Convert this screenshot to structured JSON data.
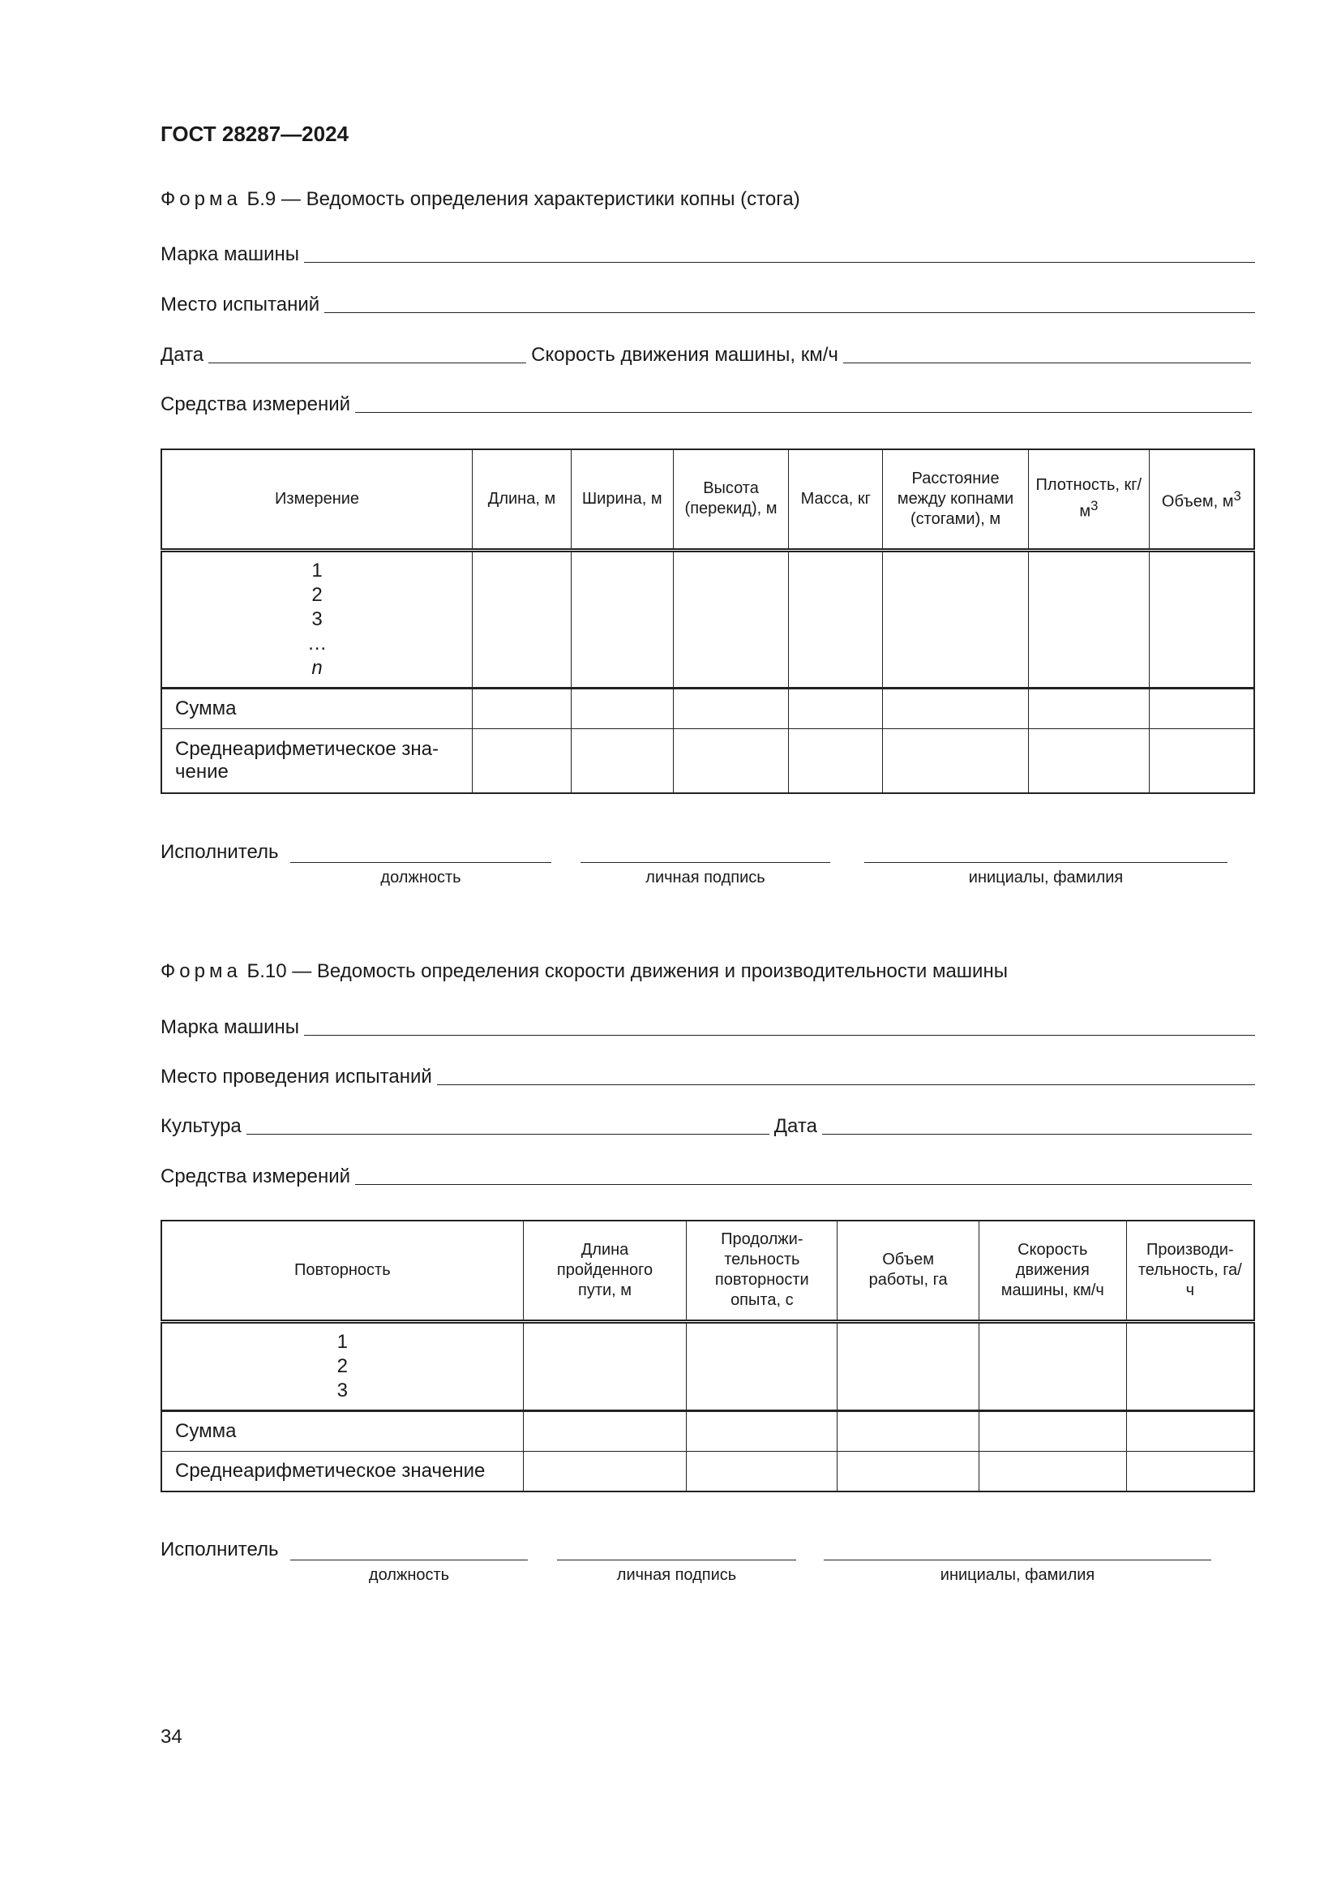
{
  "header": {
    "doc_title": "ГОСТ 28287—2024"
  },
  "form_b9": {
    "caption_prefix": "Форма",
    "caption_text": "Б.9 — Ведомость определения характеристики копны (стога)",
    "fields": {
      "machine_brand": "Марка машины",
      "test_site": "Место испытаний",
      "date": "Дата",
      "speed": "Скорость движения машины, км/ч",
      "instruments": "Средства измерений"
    },
    "table": {
      "headers": [
        "Измерение",
        "Длина, м",
        "Ширина, м",
        "Высота (перекид), м",
        "Масса, кг",
        "Расстояние между копнами (стогами), м",
        "Плотность, кг/м",
        "Объем, м"
      ],
      "superscript": "3",
      "row_numbers": [
        "1",
        "2",
        "3",
        "…",
        "n"
      ],
      "sum_label": "Сумма",
      "avg_label": "Среднеарифметическое зна-чение"
    },
    "signature": {
      "label": "Исполнитель",
      "position": "должность",
      "signature": "личная подпись",
      "name": "инициалы, фамилия"
    }
  },
  "form_b10": {
    "caption_prefix": "Форма",
    "caption_text": "Б.10 — Ведомость определения скорости движения и производительности машины",
    "fields": {
      "machine_brand": "Марка машины",
      "test_site": "Место проведения испытаний",
      "crop": "Культура",
      "date": "Дата",
      "instruments": "Средства измерений"
    },
    "table": {
      "headers": [
        "Повторность",
        "Длина пройденного пути, м",
        "Продолжи-тельность повторности опыта, с",
        "Объем работы, га",
        "Скорость движения машины, км/ч",
        "Производи-тельность, га/ч"
      ],
      "row_numbers": [
        "1",
        "2",
        "3"
      ],
      "sum_label": "Сумма",
      "avg_label": "Среднеарифметическое значение"
    },
    "signature": {
      "label": "Исполнитель",
      "position": "должность",
      "signature": "личная подпись",
      "name": "инициалы, фамилия"
    }
  },
  "footer": {
    "page_number": "34"
  }
}
